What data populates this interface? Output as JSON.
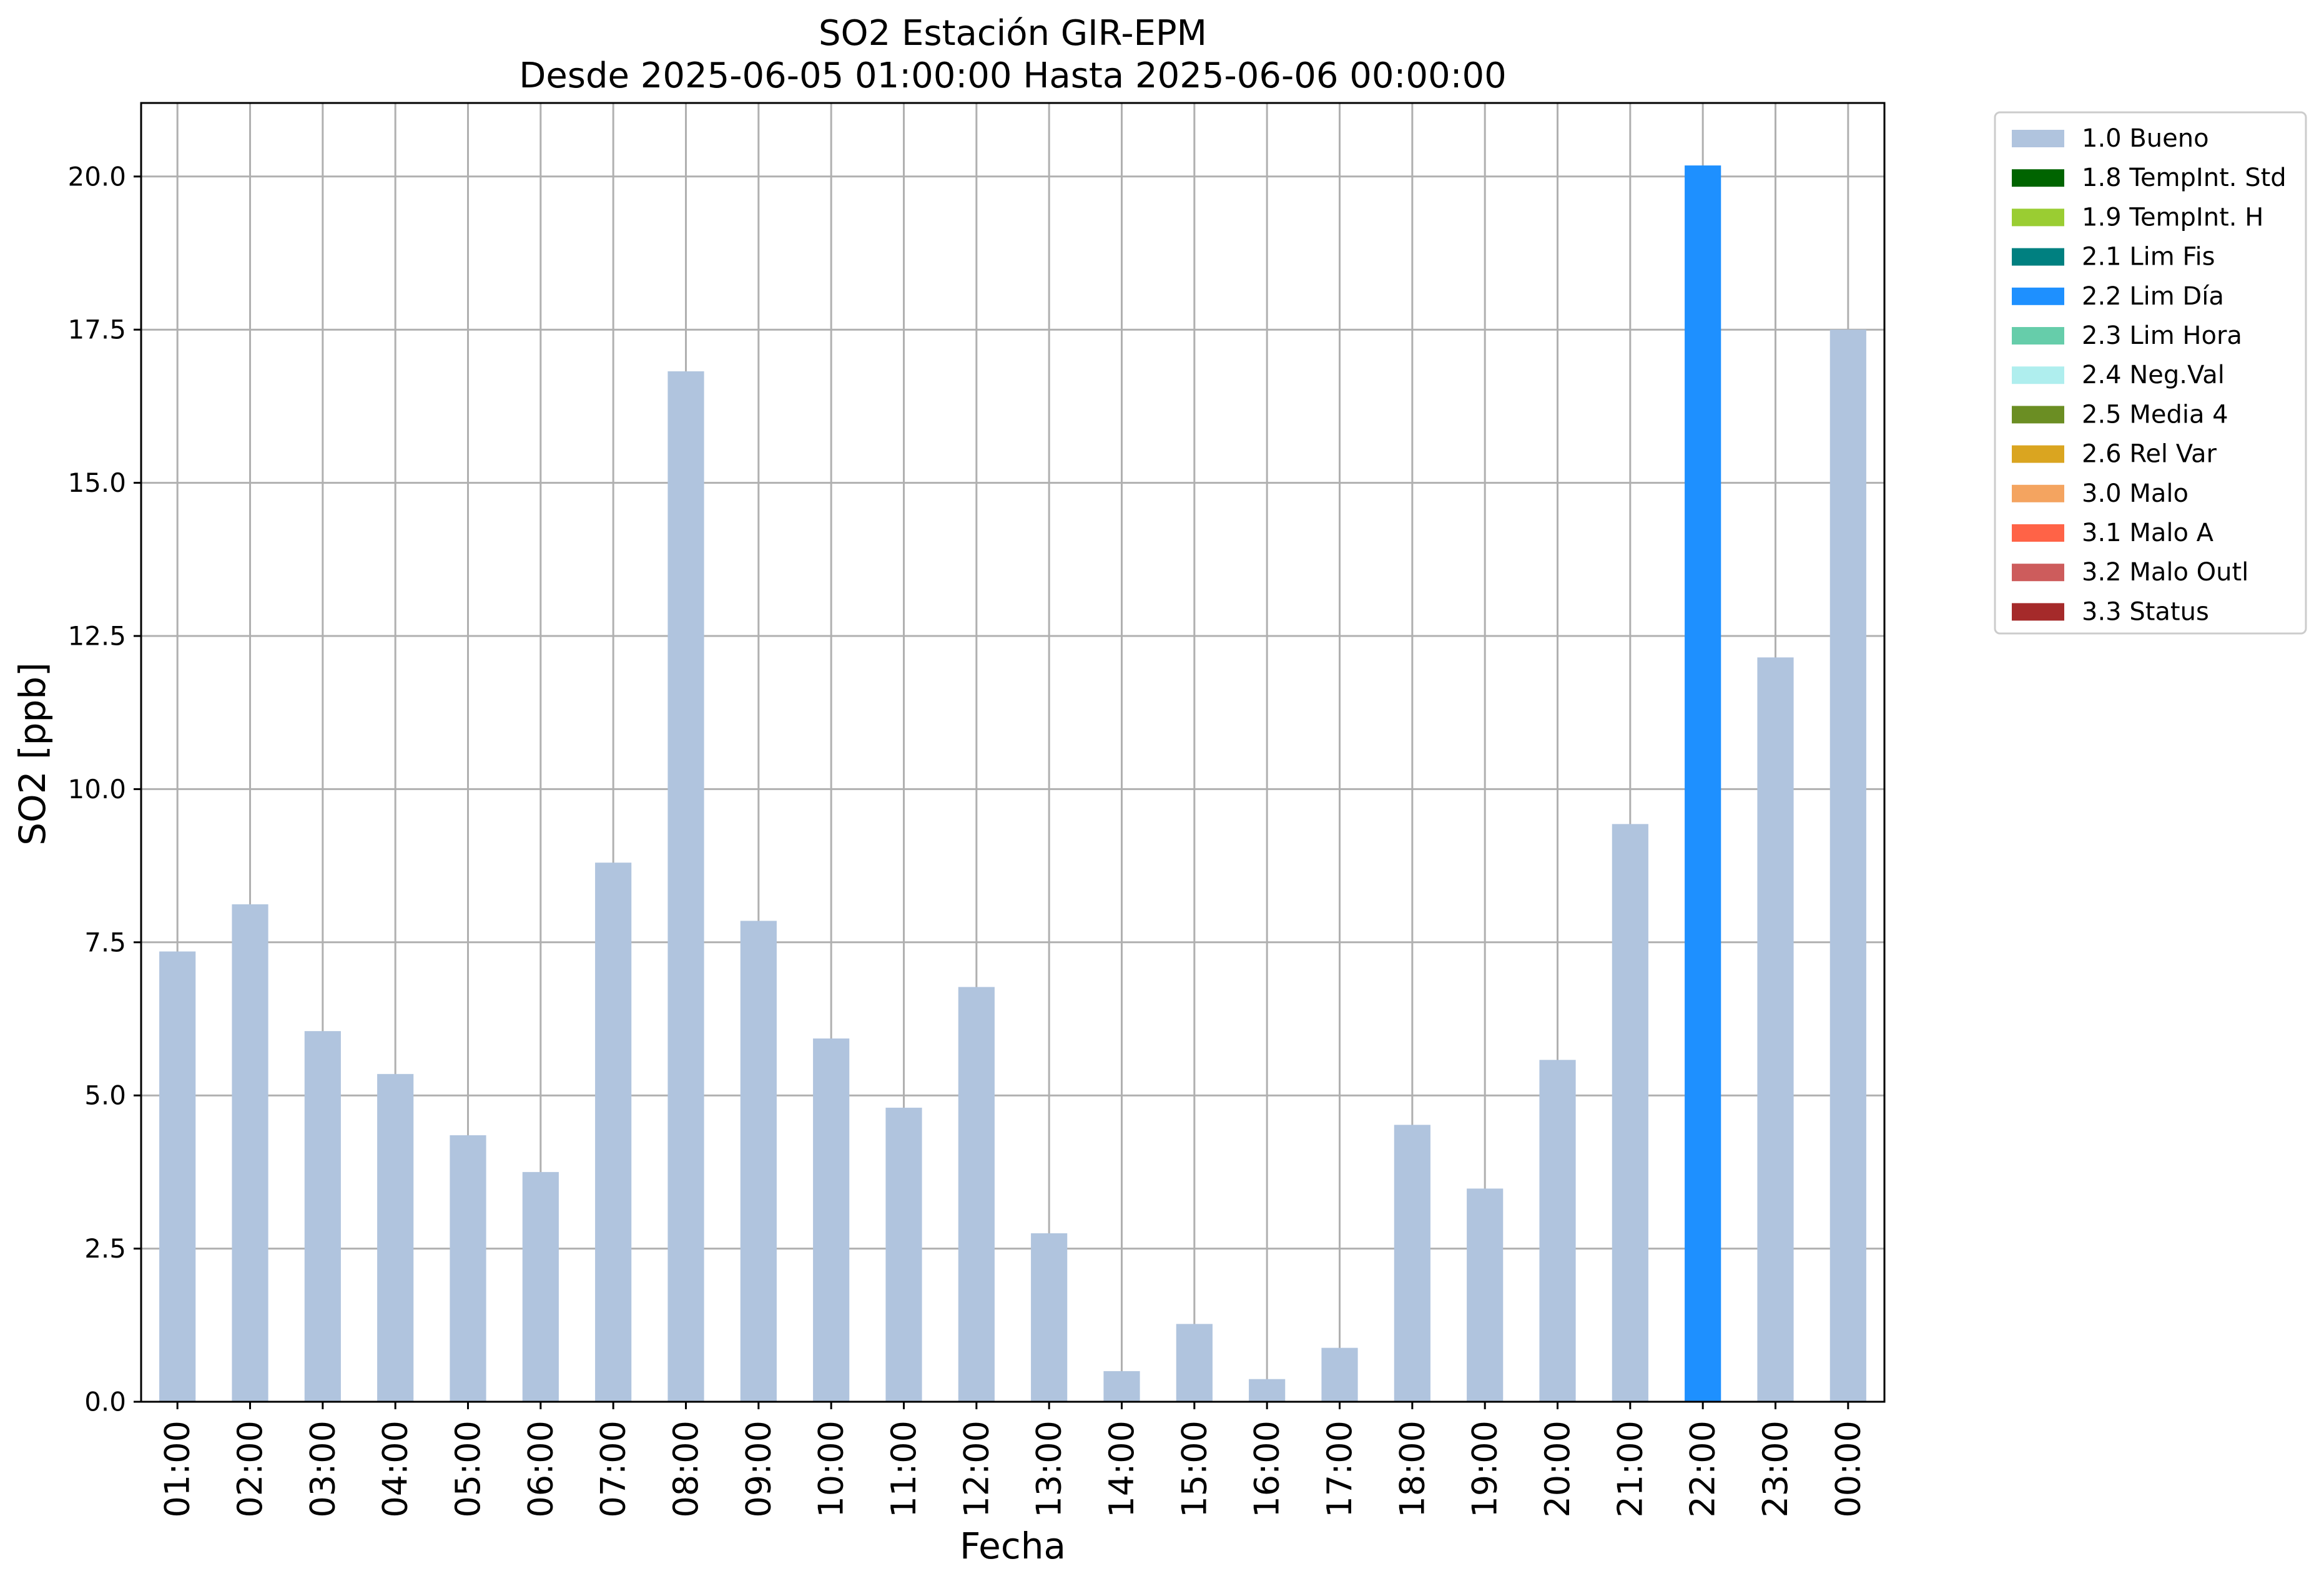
{
  "chart_data": {
    "type": "bar",
    "title": "SO2 Estación GIR-EPM",
    "subtitle": "Desde 2025-06-05 01:00:00 Hasta 2025-06-06 00:00:00",
    "xlabel": "Fecha",
    "ylabel": "SO2 [ppb]",
    "ylim": [
      0,
      21.2
    ],
    "yticks": [
      "0.0",
      "2.5",
      "5.0",
      "7.5",
      "10.0",
      "12.5",
      "15.0",
      "17.5",
      "20.0"
    ],
    "grid": true,
    "legend_position": "outside right, top",
    "categories": [
      "01:00",
      "02:00",
      "03:00",
      "04:00",
      "05:00",
      "06:00",
      "07:00",
      "08:00",
      "09:00",
      "10:00",
      "11:00",
      "12:00",
      "13:00",
      "14:00",
      "15:00",
      "16:00",
      "17:00",
      "18:00",
      "19:00",
      "20:00",
      "21:00",
      "22:00",
      "23:00",
      "00:00"
    ],
    "values": [
      7.35,
      8.12,
      6.05,
      5.35,
      4.35,
      3.75,
      8.8,
      16.82,
      7.85,
      5.93,
      4.8,
      6.77,
      2.75,
      0.5,
      1.27,
      0.37,
      0.88,
      4.52,
      3.48,
      5.58,
      9.43,
      20.18,
      12.15,
      17.5
    ],
    "flags": [
      "1.0 Bueno",
      "1.0 Bueno",
      "1.0 Bueno",
      "1.0 Bueno",
      "1.0 Bueno",
      "1.0 Bueno",
      "1.0 Bueno",
      "1.0 Bueno",
      "1.0 Bueno",
      "1.0 Bueno",
      "1.0 Bueno",
      "1.0 Bueno",
      "1.0 Bueno",
      "1.0 Bueno",
      "1.0 Bueno",
      "1.0 Bueno",
      "1.0 Bueno",
      "1.0 Bueno",
      "1.0 Bueno",
      "1.0 Bueno",
      "1.0 Bueno",
      "2.2 Lim Día",
      "1.0 Bueno",
      "1.0 Bueno"
    ],
    "legend": [
      {
        "label": "1.0 Bueno",
        "color": "#b0c4de"
      },
      {
        "label": "1.8 TempInt. Std",
        "color": "#006400"
      },
      {
        "label": "1.9 TempInt. H",
        "color": "#9acd32"
      },
      {
        "label": "2.1 Lim Fis",
        "color": "#008080"
      },
      {
        "label": "2.2 Lim Día",
        "color": "#1e90ff"
      },
      {
        "label": "2.3 Lim Hora",
        "color": "#66cdaa"
      },
      {
        "label": "2.4 Neg.Val",
        "color": "#afeeee"
      },
      {
        "label": "2.5 Media 4",
        "color": "#6b8e23"
      },
      {
        "label": "2.6 Rel Var",
        "color": "#daa520"
      },
      {
        "label": "3.0 Malo",
        "color": "#f4a460"
      },
      {
        "label": "3.1 Malo A",
        "color": "#ff6347"
      },
      {
        "label": "3.2 Malo Outl",
        "color": "#cd5c5c"
      },
      {
        "label": "3.3 Status",
        "color": "#a52a2a"
      }
    ]
  }
}
